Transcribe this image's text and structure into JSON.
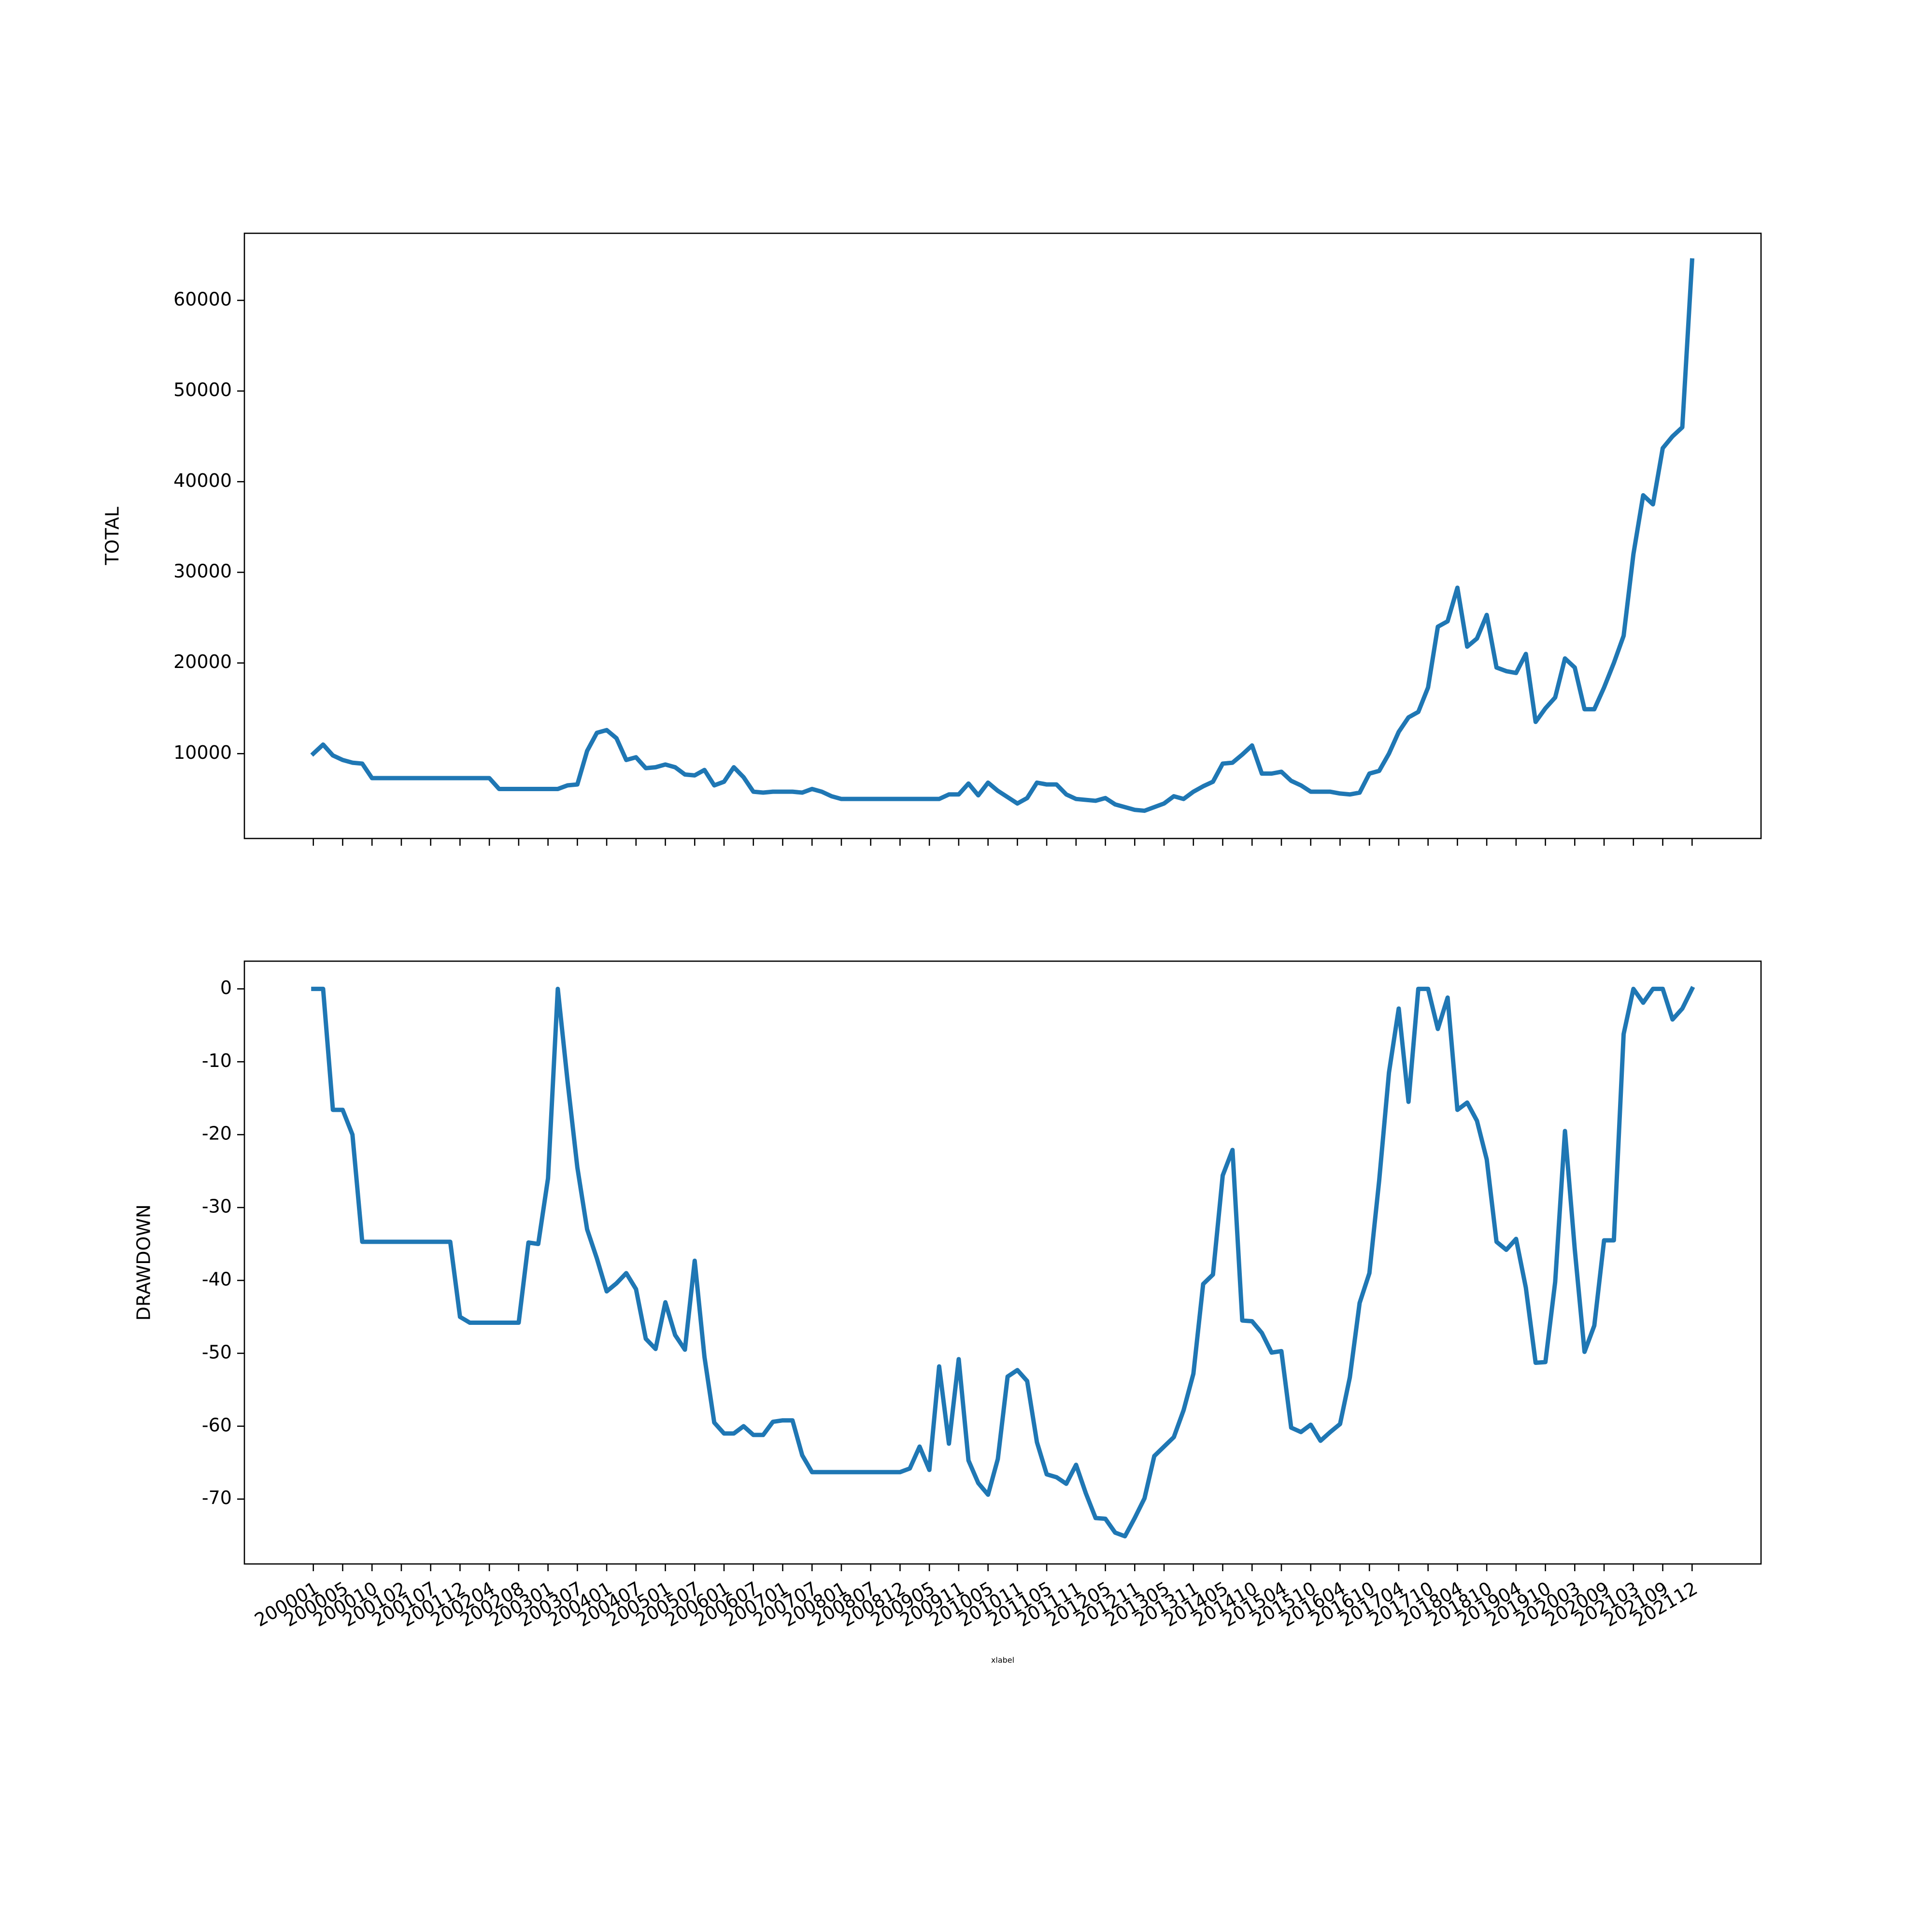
{
  "chart_data": [
    {
      "type": "line",
      "ylabel": "TOTAL",
      "color": "#1f77b4",
      "ylim": [
        640,
        67400
      ],
      "yticks": [
        10000,
        20000,
        30000,
        40000,
        50000,
        60000
      ],
      "values": [
        10000,
        11000,
        9800,
        9300,
        9000,
        8900,
        7300,
        7300,
        7300,
        7300,
        7300,
        7300,
        7300,
        7300,
        7300,
        7300,
        7300,
        7300,
        7300,
        6100,
        6100,
        6100,
        6100,
        6100,
        6100,
        6100,
        6500,
        6600,
        10300,
        12300,
        12600,
        11700,
        9300,
        9600,
        8400,
        8500,
        8800,
        8500,
        7700,
        7600,
        8200,
        6500,
        6900,
        8500,
        7400,
        5800,
        5700,
        5800,
        5800,
        5800,
        5700,
        6100,
        5800,
        5300,
        5000,
        5000,
        5000,
        5000,
        5000,
        5000,
        5000,
        5000,
        5000,
        5000,
        5000,
        5500,
        5500,
        6700,
        5400,
        6800,
        5900,
        5200,
        4500,
        5100,
        6800,
        6600,
        6600,
        5500,
        5000,
        4900,
        4800,
        5100,
        4400,
        4100,
        3800,
        3700,
        4100,
        4500,
        5300,
        5000,
        5800,
        6400,
        6900,
        8900,
        9000,
        9900,
        10900,
        7800,
        7800,
        8000,
        7000,
        6500,
        5800,
        5800,
        5800,
        5600,
        5500,
        5700,
        7800,
        8100,
        10000,
        12400,
        14000,
        14600,
        17300,
        24000,
        24600,
        28300,
        21800,
        22700,
        25300,
        19500,
        19100,
        18900,
        21000,
        13500,
        15000,
        16200,
        20500,
        19500,
        14900,
        14900,
        17300,
        20000,
        23000,
        32000,
        38500,
        37500,
        43700,
        45000,
        46000,
        64400
      ]
    },
    {
      "type": "line",
      "ylabel": "DRAWDOWN",
      "xlabel": "xlabel",
      "color": "#1f77b4",
      "ylim": [
        -78.9,
        3.8
      ],
      "yticks": [
        -70,
        -60,
        -50,
        -40,
        -30,
        -20,
        -10,
        0
      ],
      "categories": [
        "200001",
        null,
        null,
        "200005",
        null,
        null,
        "200010",
        null,
        null,
        "200102",
        null,
        null,
        "200107",
        null,
        null,
        "200112",
        null,
        null,
        "200204",
        null,
        null,
        "200208",
        null,
        null,
        "200301",
        null,
        null,
        "200307",
        null,
        null,
        "200401",
        null,
        null,
        "200407",
        null,
        null,
        "200501",
        null,
        null,
        "200507",
        null,
        null,
        "200601",
        null,
        null,
        "200607",
        null,
        null,
        "200701",
        null,
        null,
        "200707",
        null,
        null,
        "200801",
        null,
        null,
        "200807",
        null,
        null,
        "200812",
        null,
        null,
        "200905",
        null,
        null,
        "200911",
        null,
        null,
        "201005",
        null,
        null,
        "201011",
        null,
        null,
        "201105",
        null,
        null,
        "201111",
        null,
        null,
        "201205",
        null,
        null,
        "201211",
        null,
        null,
        "201305",
        null,
        null,
        "201311",
        null,
        null,
        "201405",
        null,
        null,
        "201410",
        null,
        null,
        "201504",
        null,
        null,
        "201510",
        null,
        null,
        "201604",
        null,
        null,
        "201610",
        null,
        null,
        "201704",
        null,
        null,
        "201710",
        null,
        null,
        "201804",
        null,
        null,
        "201810",
        null,
        null,
        "201904",
        null,
        null,
        "201910",
        null,
        null,
        "202003",
        null,
        null,
        "202009",
        null,
        null,
        "202103",
        null,
        null,
        "202109",
        null,
        null,
        "202112"
      ],
      "values": [
        0,
        0,
        -16.6,
        -16.6,
        -20,
        -34.7,
        -34.7,
        -34.7,
        -34.7,
        -34.7,
        -34.7,
        -34.7,
        -34.7,
        -34.7,
        -34.7,
        -45,
        -45.8,
        -45.8,
        -45.8,
        -45.8,
        -45.8,
        -45.8,
        -34.8,
        -35,
        -26,
        0,
        -12.7,
        -24.5,
        -33,
        -37,
        -41.5,
        -40.4,
        -39,
        -41.2,
        -48,
        -49.4,
        -43,
        -47.5,
        -49.5,
        -37.3,
        -50.5,
        -59.5,
        -61,
        -61,
        -60,
        -61.2,
        -61.2,
        -59.4,
        -59.2,
        -59.2,
        -64,
        -66.3,
        -66.3,
        -66.3,
        -66.3,
        -66.3,
        -66.3,
        -66.3,
        -66.3,
        -66.3,
        -66.3,
        -65.8,
        -62.8,
        -66,
        -51.8,
        -62.4,
        -50.8,
        -64.7,
        -67.8,
        -69.4,
        -64.5,
        -53.2,
        -52.3,
        -53.8,
        -62.2,
        -66.6,
        -67,
        -67.9,
        -65.3,
        -69.2,
        -72.6,
        -72.7,
        -74.6,
        -75.1,
        -72.6,
        -69.9,
        -64.1,
        -62.8,
        -61.5,
        -57.8,
        -52.8,
        -40.5,
        -39.2,
        -25.6,
        -22.1,
        -45.5,
        -45.6,
        -47.2,
        -49.9,
        -49.7,
        -60.2,
        -60.8,
        -59.8,
        -62,
        -60.8,
        -59.7,
        -53.3,
        -43.1,
        -39,
        -26.3,
        -11.5,
        -2.7,
        -15.5,
        0,
        0,
        -5.5,
        -1.2,
        -16.6,
        -15.6,
        -18.1,
        -23.4,
        -34.7,
        -35.8,
        -34.3,
        -41,
        -51.3,
        -51.2,
        -40.2,
        -19.5,
        -35.7,
        -49.8,
        -46.2,
        -34.5,
        -34.5,
        -6.2,
        0,
        -1.9,
        0,
        0,
        -4.2,
        -2.7,
        0
      ]
    }
  ]
}
